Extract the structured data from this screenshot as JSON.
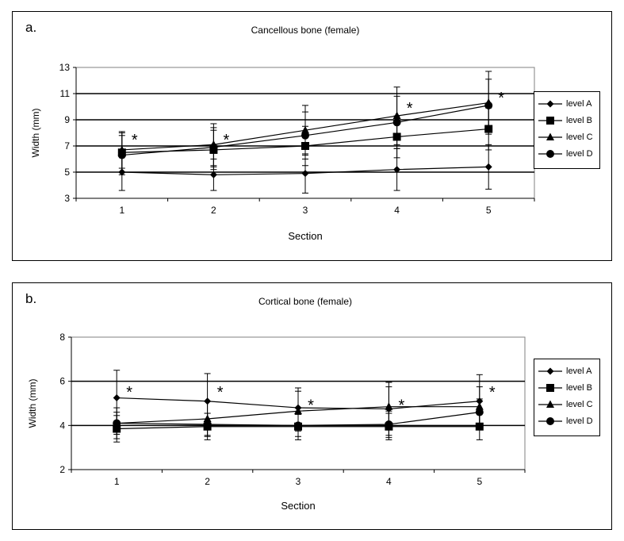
{
  "chart_data": [
    {
      "type": "line",
      "panel_label": "a.",
      "title": "Cancellous bone (female)",
      "xlabel": "Section",
      "ylabel": "Width (mm)",
      "x": [
        1,
        2,
        3,
        4,
        5
      ],
      "x_ticks": [
        "1",
        "2",
        "3",
        "4",
        "5"
      ],
      "ylim": [
        3,
        13
      ],
      "y_ticks": [
        "3",
        "5",
        "7",
        "9",
        "11",
        "13"
      ],
      "gridlines_at": [
        5,
        7,
        9,
        11
      ],
      "legend_position": "right",
      "error_bars": true,
      "series": [
        {
          "name": "level A",
          "marker": "diamond",
          "values": [
            5.0,
            4.8,
            4.9,
            5.2,
            5.4
          ],
          "err": [
            1.4,
            1.2,
            1.5,
            1.6,
            1.7
          ]
        },
        {
          "name": "level B",
          "marker": "square",
          "values": [
            6.5,
            6.7,
            7.0,
            7.7,
            8.3
          ],
          "err": [
            1.5,
            1.5,
            1.5,
            1.6,
            1.6
          ]
        },
        {
          "name": "level C",
          "marker": "triangle",
          "values": [
            6.7,
            7.1,
            8.2,
            9.3,
            10.3
          ],
          "err": [
            1.4,
            1.6,
            1.9,
            2.2,
            2.4
          ]
        },
        {
          "name": "level D",
          "marker": "circle",
          "values": [
            6.3,
            6.9,
            7.8,
            8.8,
            10.1
          ],
          "err": [
            1.5,
            1.5,
            1.8,
            2.0,
            2.0
          ]
        }
      ],
      "annotations": [
        {
          "text": "*",
          "x": 1,
          "y": 7.8
        },
        {
          "text": "*",
          "x": 2,
          "y": 7.8
        },
        {
          "text": "*",
          "x": 4,
          "y": 10.2
        },
        {
          "text": "*",
          "x": 5,
          "y": 11.0
        }
      ]
    },
    {
      "type": "line",
      "panel_label": "b.",
      "title": "Cortical bone (female)",
      "xlabel": "Section",
      "ylabel": "Width (mm)",
      "x": [
        1,
        2,
        3,
        4,
        5
      ],
      "x_ticks": [
        "1",
        "2",
        "3",
        "4",
        "5"
      ],
      "ylim": [
        2,
        8
      ],
      "y_ticks": [
        "2",
        "4",
        "6",
        "8"
      ],
      "gridlines_at": [
        4,
        6
      ],
      "legend_position": "right",
      "error_bars": true,
      "series": [
        {
          "name": "level A",
          "marker": "diamond",
          "values": [
            5.25,
            5.1,
            4.8,
            4.75,
            5.1
          ],
          "err": [
            1.25,
            1.25,
            0.9,
            1.2,
            1.2
          ]
        },
        {
          "name": "level B",
          "marker": "square",
          "values": [
            3.85,
            3.95,
            3.95,
            3.95,
            3.95
          ],
          "err": [
            0.6,
            0.6,
            0.6,
            0.6,
            0.6
          ]
        },
        {
          "name": "level C",
          "marker": "triangle",
          "values": [
            4.1,
            4.3,
            4.65,
            4.85,
            4.85
          ],
          "err": [
            0.7,
            0.8,
            0.9,
            0.9,
            0.9
          ]
        },
        {
          "name": "level D",
          "marker": "circle",
          "values": [
            4.1,
            4.05,
            4.0,
            4.05,
            4.6
          ],
          "err": [
            0.5,
            0.5,
            0.5,
            0.6,
            0.6
          ]
        }
      ],
      "annotations": [
        {
          "text": "*",
          "x": 1,
          "y": 5.7
        },
        {
          "text": "*",
          "x": 2,
          "y": 5.7
        },
        {
          "text": "*",
          "x": 3,
          "y": 5.1
        },
        {
          "text": "*",
          "x": 4,
          "y": 5.1
        },
        {
          "text": "*",
          "x": 5,
          "y": 5.7
        }
      ]
    }
  ]
}
